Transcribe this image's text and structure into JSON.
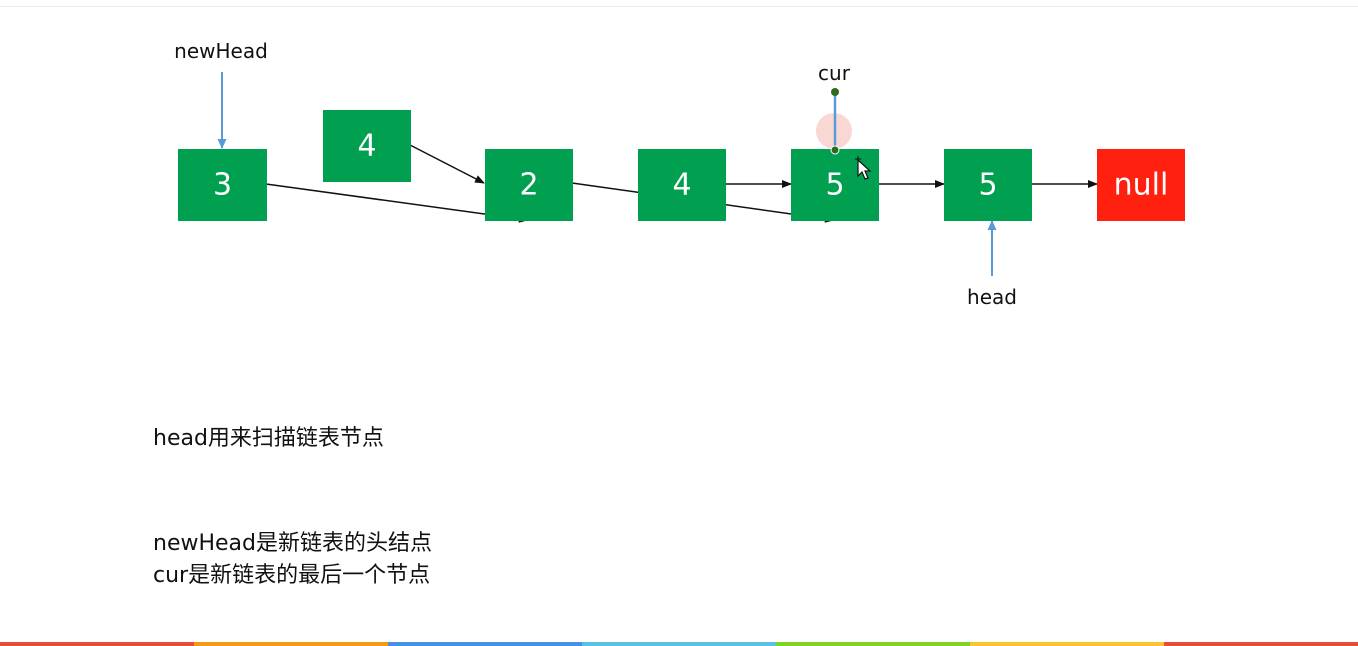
{
  "diagram": {
    "nodes": [
      {
        "id": "n3",
        "value": "3",
        "color": "#00A050"
      },
      {
        "id": "n4a",
        "value": "4",
        "color": "#00A050"
      },
      {
        "id": "n2",
        "value": "2",
        "color": "#00A050"
      },
      {
        "id": "n4b",
        "value": "4",
        "color": "#00A050"
      },
      {
        "id": "n5a",
        "value": "5",
        "color": "#00A050"
      },
      {
        "id": "n5b",
        "value": "5",
        "color": "#00A050"
      },
      {
        "id": "nnull",
        "value": "null",
        "color": "#FF2010"
      }
    ],
    "pointers": {
      "newHead": "newHead",
      "cur": "cur",
      "head": "head"
    }
  },
  "notes": {
    "head": "head用来扫描链表节点",
    "newHead": "newHead是新链表的头结点",
    "cur": "cur是新链表的最后一个节点"
  },
  "colors": {
    "node_green": "#00A050",
    "null_red": "#FF2010",
    "pointer_blue": "#5B9BD5",
    "cur_dot": "#2E6B1E",
    "strip": [
      "#E84C3D",
      "#F39C12",
      "#4A90E2",
      "#5BC0DE",
      "#7ED321",
      "#F8C630",
      "#E84C3D"
    ]
  }
}
